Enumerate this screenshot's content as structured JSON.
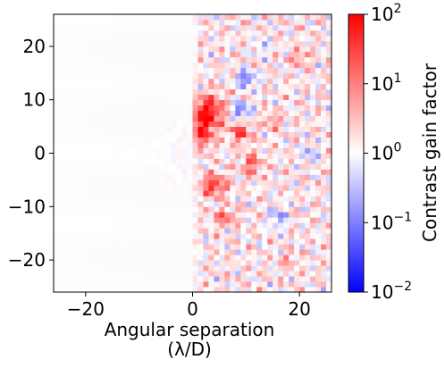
{
  "chart_data": {
    "type": "heatmap",
    "title": "",
    "xlabel_line1": "Angular separation",
    "xlabel_line2": "(λ/D)",
    "ylabel": "",
    "xlim": [
      -26,
      26
    ],
    "ylim": [
      -26,
      26
    ],
    "x_ticks": [
      {
        "value": -20,
        "label": "−20"
      },
      {
        "value": 0,
        "label": "0"
      },
      {
        "value": 20,
        "label": "20"
      }
    ],
    "y_ticks": [
      {
        "value": 20,
        "label": "20"
      },
      {
        "value": 10,
        "label": "10"
      },
      {
        "value": 0,
        "label": "0"
      },
      {
        "value": -10,
        "label": "−10"
      },
      {
        "value": -20,
        "label": "−20"
      }
    ],
    "colorbar": {
      "label": "Contrast gain factor",
      "scale": "log",
      "range": [
        0.01,
        100
      ],
      "colormap": "bwr",
      "colors": {
        "low": "#0000ff",
        "mid": "#ffffff",
        "high": "#ff0000"
      },
      "ticks": [
        {
          "value": 100,
          "base": "10",
          "exp": "2"
        },
        {
          "value": 10,
          "base": "10",
          "exp": "1"
        },
        {
          "value": 1,
          "base": "10",
          "exp": "0"
        },
        {
          "value": 0.1,
          "base": "10",
          "exp": "−1"
        },
        {
          "value": 0.01,
          "base": "10",
          "exp": "−2"
        }
      ]
    },
    "field": {
      "description": "log10 gain approx 0 (value 1) for x < 0; speckled mix of gains for x > 0",
      "blobs": [
        {
          "x": 3,
          "y": 8,
          "rx": 3,
          "ry": 3,
          "log_gain": 1.6
        },
        {
          "x": 2,
          "y": 4,
          "rx": 2,
          "ry": 3,
          "log_gain": 1.3
        },
        {
          "x": 4,
          "y": -6,
          "rx": 2.5,
          "ry": 2,
          "log_gain": 1.4
        },
        {
          "x": 9,
          "y": 4,
          "rx": 2,
          "ry": 2,
          "log_gain": 1.2
        },
        {
          "x": 11,
          "y": -2,
          "rx": 1.8,
          "ry": 2,
          "log_gain": 1.1
        },
        {
          "x": 6,
          "y": -12,
          "rx": 2,
          "ry": 1.6,
          "log_gain": 1.0
        },
        {
          "x": 15,
          "y": 6,
          "rx": 1.5,
          "ry": 1.5,
          "log_gain": 0.8
        },
        {
          "x": 20,
          "y": 18,
          "rx": 2,
          "ry": 1.5,
          "log_gain": 0.7
        },
        {
          "x": 10,
          "y": 14,
          "rx": 1.8,
          "ry": 1.5,
          "log_gain": -1.3
        },
        {
          "x": 9,
          "y": 8,
          "rx": 1.8,
          "ry": 1.8,
          "log_gain": -1.2
        },
        {
          "x": 16,
          "y": -12,
          "rx": 1.5,
          "ry": 2,
          "log_gain": -0.9
        },
        {
          "x": 22,
          "y": 0,
          "rx": 1.5,
          "ry": 1.5,
          "log_gain": -0.8
        },
        {
          "x": 13,
          "y": 20,
          "rx": 1.5,
          "ry": 1.5,
          "log_gain": -0.6
        },
        {
          "x": 18,
          "y": -20,
          "rx": 1.5,
          "ry": 1.5,
          "log_gain": 0.6
        }
      ]
    }
  }
}
